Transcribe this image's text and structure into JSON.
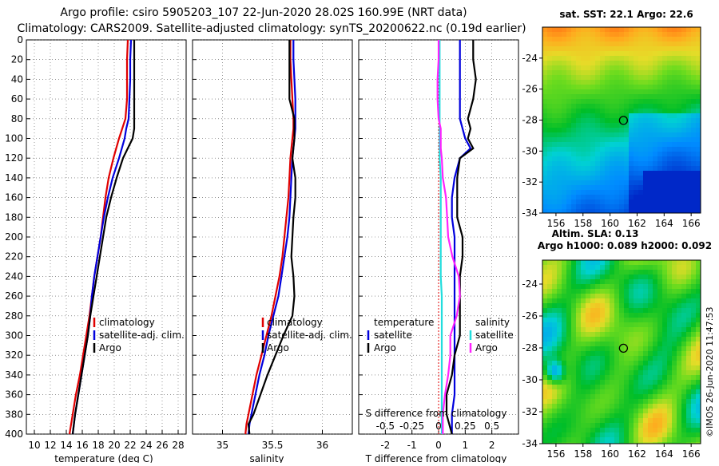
{
  "title": {
    "line1": "Argo profile: csiro 5905203_107 22-Jun-2020 28.02S 160.99E (NRT data)",
    "line2": "Climatology: CARS2009. Satellite-adjusted climatology: synTS_20200622.nc (0.19d earlier)"
  },
  "colors": {
    "climatology": "#e00000",
    "satellite": "#0000dd",
    "argo": "#000000",
    "salinity_diff": "#ff22ff",
    "salinity_sat": "#22dddd"
  },
  "chart_data": [
    {
      "type": "line",
      "id": "temperature",
      "xlabel": "temperature (deg C)",
      "xlim": [
        9,
        29
      ],
      "ylim": [
        0,
        400
      ],
      "x_ticks": [
        10,
        12,
        14,
        16,
        18,
        20,
        22,
        24,
        26,
        28
      ],
      "y_ticks": [
        0,
        20,
        40,
        60,
        80,
        100,
        120,
        140,
        160,
        180,
        200,
        220,
        240,
        260,
        280,
        300,
        320,
        340,
        360,
        380,
        400
      ],
      "depth": [
        0,
        20,
        40,
        60,
        80,
        90,
        100,
        120,
        140,
        160,
        180,
        200,
        220,
        240,
        260,
        280,
        300,
        320,
        340,
        360,
        380,
        400
      ],
      "series": [
        {
          "name": "climatology",
          "color": "#e00000",
          "values": [
            21.7,
            21.6,
            21.6,
            21.6,
            21.4,
            21.0,
            20.6,
            19.9,
            19.3,
            18.9,
            18.6,
            18.3,
            17.9,
            17.5,
            17.2,
            16.9,
            16.5,
            16.1,
            15.7,
            15.2,
            14.8,
            14.4
          ]
        },
        {
          "name": "satellite-adj. clim.",
          "color": "#0000dd",
          "values": [
            22.1,
            22.0,
            22.0,
            21.9,
            21.8,
            21.5,
            21.3,
            20.6,
            19.8,
            19.2,
            18.7,
            18.3,
            17.9,
            17.5,
            17.2,
            17.0,
            16.7,
            16.3,
            15.9,
            15.5,
            15.1,
            14.8
          ]
        },
        {
          "name": "Argo",
          "color": "#000000",
          "values": [
            22.5,
            22.5,
            22.5,
            22.5,
            22.5,
            22.5,
            22.3,
            21.1,
            20.3,
            19.6,
            19.0,
            18.6,
            18.2,
            17.8,
            17.4,
            17.0,
            16.7,
            16.3,
            15.9,
            15.5,
            15.1,
            14.8
          ]
        }
      ],
      "legend": [
        "climatology",
        "satellite-adj. clim.",
        "Argo"
      ]
    },
    {
      "type": "line",
      "id": "salinity",
      "xlabel": "salinity",
      "xlim": [
        34.7,
        36.3
      ],
      "ylim": [
        0,
        400
      ],
      "x_ticks": [
        35,
        35.5,
        36
      ],
      "depth": [
        0,
        20,
        40,
        60,
        80,
        90,
        100,
        120,
        140,
        160,
        180,
        200,
        220,
        240,
        260,
        280,
        300,
        320,
        340,
        360,
        380,
        390,
        400
      ],
      "series": [
        {
          "name": "climatology",
          "color": "#e00000",
          "values": [
            35.68,
            35.68,
            35.69,
            35.7,
            35.71,
            35.71,
            35.7,
            35.68,
            35.67,
            35.66,
            35.64,
            35.62,
            35.6,
            35.57,
            35.53,
            35.49,
            35.44,
            35.39,
            35.34,
            35.3,
            35.26,
            35.24,
            35.23
          ]
        },
        {
          "name": "satellite-adj. clim.",
          "color": "#0000dd",
          "values": [
            35.71,
            35.71,
            35.72,
            35.73,
            35.73,
            35.73,
            35.72,
            35.7,
            35.69,
            35.68,
            35.67,
            35.65,
            35.62,
            35.59,
            35.56,
            35.51,
            35.46,
            35.42,
            35.37,
            35.33,
            35.29,
            35.27,
            35.26
          ]
        },
        {
          "name": "Argo",
          "color": "#000000",
          "values": [
            35.67,
            35.67,
            35.67,
            35.67,
            35.72,
            35.72,
            35.72,
            35.7,
            35.73,
            35.73,
            35.71,
            35.7,
            35.69,
            35.71,
            35.72,
            35.7,
            35.61,
            35.53,
            35.45,
            35.38,
            35.31,
            35.26,
            35.27
          ]
        }
      ],
      "legend": [
        "climatology",
        "satellite-adj. clim.",
        "Argo"
      ]
    },
    {
      "type": "line",
      "id": "difference",
      "xlabel": "T difference from climatology",
      "xlabel2": "S difference from climatology",
      "xlim": [
        -3,
        3
      ],
      "ylim": [
        0,
        400
      ],
      "x_ticks": [
        -2,
        -1,
        0,
        1,
        2
      ],
      "x_ticks_labels": [
        "-2",
        "-1",
        "0",
        "1",
        "2"
      ],
      "x2_ticks": [
        -0.5,
        -0.25,
        0,
        0.25,
        0.5
      ],
      "x2_ticks_labels": [
        "-0.5",
        "-0.25",
        "0",
        "0.25",
        "0.5"
      ],
      "depth": [
        0,
        20,
        40,
        60,
        80,
        90,
        100,
        110,
        120,
        140,
        160,
        180,
        200,
        220,
        240,
        260,
        280,
        300,
        320,
        340,
        360,
        380,
        400
      ],
      "series": [
        {
          "name": "temperature satellite",
          "group": "temperature",
          "color": "#0000dd",
          "values": [
            0.8,
            0.8,
            0.8,
            0.8,
            0.8,
            0.9,
            1.0,
            1.2,
            0.8,
            0.6,
            0.5,
            0.5,
            0.6,
            0.6,
            0.6,
            0.6,
            0.6,
            0.6,
            0.6,
            0.6,
            0.6,
            0.5,
            0.5
          ]
        },
        {
          "name": "temperature Argo",
          "group": "temperature",
          "color": "#000000",
          "values": [
            1.3,
            1.3,
            1.4,
            1.3,
            1.1,
            1.2,
            1.1,
            1.3,
            0.8,
            0.7,
            0.7,
            0.7,
            0.9,
            0.9,
            0.8,
            0.8,
            0.8,
            0.8,
            0.6,
            0.5,
            0.3,
            0.3,
            0.5
          ]
        },
        {
          "name": "salinity satellite",
          "group": "salinity",
          "color": "#22dddd",
          "values": [
            0.01,
            0.01,
            0.01,
            0.01,
            0.01,
            0.01,
            0.01,
            0.01,
            0.01,
            0.02,
            0.02,
            0.02,
            0.02,
            0.02,
            0.02,
            0.03,
            0.03,
            0.03,
            0.03,
            0.03,
            0.03,
            0.03,
            0.03
          ]
        },
        {
          "name": "salinity Argo",
          "group": "salinity",
          "color": "#ff22ff",
          "values": [
            0.0,
            0.0,
            -0.01,
            -0.01,
            0.0,
            0.02,
            0.02,
            0.02,
            0.03,
            0.04,
            0.07,
            0.08,
            0.09,
            0.13,
            0.19,
            0.2,
            0.17,
            0.11,
            0.11,
            0.09,
            0.06,
            0.04,
            0.04
          ]
        }
      ],
      "legend_temperature_title": "temperature",
      "legend_salinity_title": "salinity",
      "legend_temperature": [
        "satellite",
        "Argo"
      ],
      "legend_salinity": [
        "satellite",
        "Argo"
      ]
    },
    {
      "type": "heatmap",
      "id": "sst_map",
      "title": "sat. SST: 22.1 Argo: 22.6",
      "x_ticks": [
        156,
        158,
        160,
        162,
        164,
        166
      ],
      "y_ticks": [
        -24,
        -26,
        -28,
        -30,
        -32,
        -34
      ],
      "xlim": [
        155,
        166.7
      ],
      "ylim": [
        -34,
        -22
      ],
      "argo_position": {
        "lon": 160.99,
        "lat": -28.02
      }
    },
    {
      "type": "heatmap",
      "id": "sla_map",
      "title_line1": "Altim. SLA: 0.13",
      "title_line2": "Argo h1000: 0.089 h2000: 0.092",
      "x_ticks": [
        156,
        158,
        160,
        162,
        164,
        166
      ],
      "y_ticks": [
        -24,
        -26,
        -28,
        -30,
        -32,
        -34
      ],
      "xlim": [
        155,
        166.7
      ],
      "ylim": [
        -34,
        -22.5
      ],
      "argo_position": {
        "lon": 160.99,
        "lat": -28.02
      }
    }
  ],
  "credit": "©IMOS 26-Jun-2020 11:47:53"
}
